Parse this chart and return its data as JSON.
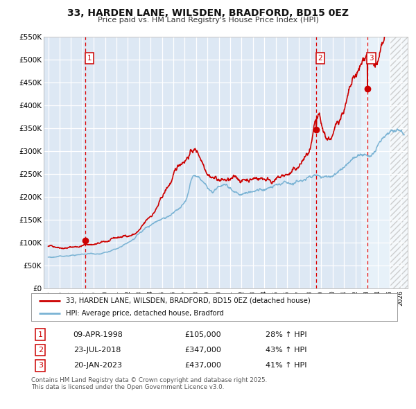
{
  "title": "33, HARDEN LANE, WILSDEN, BRADFORD, BD15 0EZ",
  "subtitle": "Price paid vs. HM Land Registry's House Price Index (HPI)",
  "legend_line1": "33, HARDEN LANE, WILSDEN, BRADFORD, BD15 0EZ (detached house)",
  "legend_line2": "HPI: Average price, detached house, Bradford",
  "footer": "Contains HM Land Registry data © Crown copyright and database right 2025.\nThis data is licensed under the Open Government Licence v3.0.",
  "transactions": [
    {
      "label": "1",
      "date": "09-APR-1998",
      "price": 105000,
      "pct": "28%",
      "dir": "↑"
    },
    {
      "label": "2",
      "date": "23-JUL-2018",
      "price": 347000,
      "pct": "43%",
      "dir": "↑"
    },
    {
      "label": "3",
      "date": "20-JAN-2023",
      "price": 437000,
      "pct": "41%",
      "dir": "↑"
    }
  ],
  "transaction_dates_decimal": [
    1998.27,
    2018.56,
    2023.05
  ],
  "transaction_prices": [
    105000,
    347000,
    437000
  ],
  "hpi_color": "#7ab3d4",
  "price_color": "#cc0000",
  "plot_area_bg": "#dde8f4",
  "grid_color": "#ffffff",
  "ylim": [
    0,
    550000
  ],
  "yticks": [
    0,
    50000,
    100000,
    150000,
    200000,
    250000,
    300000,
    350000,
    400000,
    450000,
    500000,
    550000
  ],
  "xlim_start": 1994.6,
  "xlim_end": 2026.6,
  "xticks": [
    1995,
    1996,
    1997,
    1998,
    1999,
    2000,
    2001,
    2002,
    2003,
    2004,
    2005,
    2006,
    2007,
    2008,
    2009,
    2010,
    2011,
    2012,
    2013,
    2014,
    2015,
    2016,
    2017,
    2018,
    2019,
    2020,
    2021,
    2022,
    2023,
    2024,
    2025,
    2026
  ],
  "hatch_start": 2025.0,
  "highlight_start": 2022.5,
  "highlight_end": 2025.0
}
